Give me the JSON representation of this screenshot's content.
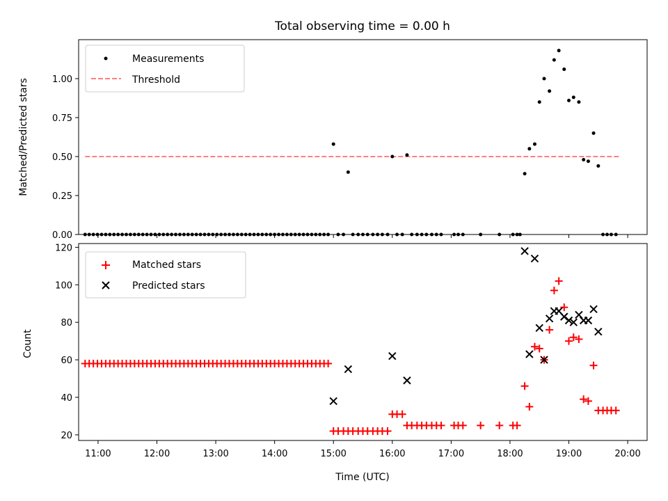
{
  "figure": {
    "title": "Total observing time = 0.00 h",
    "xlabel": "Time (UTC)",
    "x_ticks": [
      "11:00",
      "12:00",
      "13:00",
      "14:00",
      "15:00",
      "16:00",
      "17:00",
      "18:00",
      "19:00",
      "20:00"
    ]
  },
  "chart_data": [
    {
      "type": "scatter",
      "ylabel": "Matched/Predicted stars",
      "xlim": [
        10.67,
        20.33
      ],
      "ylim": [
        0,
        1.25
      ],
      "y_ticks": [
        "0.00",
        "0.25",
        "0.50",
        "0.75",
        "1.00"
      ],
      "legend": [
        "Measurements",
        "Threshold"
      ],
      "legend_position": "upper-left",
      "threshold": {
        "name": "Threshold",
        "y": 0.5,
        "x_range": [
          10.78,
          19.85
        ],
        "color": "#ff7f7f"
      },
      "measurements": {
        "name": "Measurements",
        "color": "#000000",
        "x": [
          10.78,
          10.85,
          10.92,
          10.99,
          11.06,
          11.13,
          11.2,
          11.27,
          11.34,
          11.41,
          11.48,
          11.55,
          11.62,
          11.69,
          11.76,
          11.83,
          11.9,
          11.97,
          12.04,
          12.11,
          12.18,
          12.25,
          12.32,
          12.39,
          12.46,
          12.53,
          12.6,
          12.67,
          12.74,
          12.81,
          12.88,
          12.95,
          13.02,
          13.09,
          13.16,
          13.23,
          13.3,
          13.37,
          13.44,
          13.51,
          13.58,
          13.65,
          13.72,
          13.79,
          13.86,
          13.93,
          14.0,
          14.07,
          14.14,
          14.21,
          14.28,
          14.35,
          14.42,
          14.49,
          14.56,
          14.63,
          14.7,
          14.77,
          14.84,
          14.91,
          15.0,
          15.08,
          15.17,
          15.25,
          15.33,
          15.42,
          15.5,
          15.58,
          15.67,
          15.75,
          15.83,
          15.92,
          16.0,
          16.08,
          16.17,
          16.25,
          16.33,
          16.42,
          16.5,
          16.58,
          16.67,
          16.75,
          16.83,
          17.05,
          17.12,
          17.2,
          17.5,
          17.82,
          18.05,
          18.12,
          18.17,
          18.25,
          18.33,
          18.42,
          18.5,
          18.58,
          18.67,
          18.75,
          18.83,
          18.92,
          19.0,
          19.08,
          19.17,
          19.25,
          19.33,
          19.42,
          19.5,
          19.58,
          19.65,
          19.72,
          19.8
        ],
        "y": [
          0,
          0,
          0,
          0,
          0,
          0,
          0,
          0,
          0,
          0,
          0,
          0,
          0,
          0,
          0,
          0,
          0,
          0,
          0,
          0,
          0,
          0,
          0,
          0,
          0,
          0,
          0,
          0,
          0,
          0,
          0,
          0,
          0,
          0,
          0,
          0,
          0,
          0,
          0,
          0,
          0,
          0,
          0,
          0,
          0,
          0,
          0,
          0,
          0,
          0,
          0,
          0,
          0,
          0,
          0,
          0,
          0,
          0,
          0,
          0,
          0.58,
          0,
          0,
          0.4,
          0,
          0,
          0,
          0,
          0,
          0,
          0,
          0,
          0.5,
          0,
          0,
          0.51,
          0,
          0,
          0,
          0,
          0,
          0,
          0,
          0,
          0,
          0,
          0,
          0,
          0,
          0,
          0,
          0.39,
          0.55,
          0.58,
          0.85,
          1.0,
          0.92,
          1.12,
          1.18,
          1.06,
          0.86,
          0.88,
          0.85,
          0.48,
          0.47,
          0.65,
          0.44,
          0,
          0,
          0,
          0
        ]
      }
    },
    {
      "type": "scatter",
      "ylabel": "Count",
      "xlim": [
        10.67,
        20.33
      ],
      "ylim": [
        17,
        122
      ],
      "y_ticks": [
        "20",
        "40",
        "60",
        "80",
        "100",
        "120"
      ],
      "legend": [
        "Matched stars",
        "Predicted stars"
      ],
      "legend_position": "upper-left",
      "series": [
        {
          "name": "Matched stars",
          "marker": "plus",
          "color": "#ff0000",
          "x": [
            10.78,
            10.85,
            10.92,
            10.99,
            11.06,
            11.13,
            11.2,
            11.27,
            11.34,
            11.41,
            11.48,
            11.55,
            11.62,
            11.69,
            11.76,
            11.83,
            11.9,
            11.97,
            12.04,
            12.11,
            12.18,
            12.25,
            12.32,
            12.39,
            12.46,
            12.53,
            12.6,
            12.67,
            12.74,
            12.81,
            12.88,
            12.95,
            13.02,
            13.09,
            13.16,
            13.23,
            13.3,
            13.37,
            13.44,
            13.51,
            13.58,
            13.65,
            13.72,
            13.79,
            13.86,
            13.93,
            14.0,
            14.07,
            14.14,
            14.21,
            14.28,
            14.35,
            14.42,
            14.49,
            14.56,
            14.63,
            14.7,
            14.77,
            14.84,
            14.91,
            15.0,
            15.08,
            15.17,
            15.25,
            15.33,
            15.42,
            15.5,
            15.58,
            15.67,
            15.75,
            15.83,
            15.92,
            16.0,
            16.08,
            16.17,
            16.25,
            16.33,
            16.42,
            16.5,
            16.58,
            16.67,
            16.75,
            16.83,
            17.05,
            17.12,
            17.2,
            17.5,
            17.82,
            18.05,
            18.12,
            18.25,
            18.33,
            18.42,
            18.5,
            18.58,
            18.67,
            18.75,
            18.83,
            18.92,
            19.0,
            19.08,
            19.17,
            19.25,
            19.33,
            19.42,
            19.5,
            19.58,
            19.65,
            19.72,
            19.8
          ],
          "y": [
            58,
            58,
            58,
            58,
            58,
            58,
            58,
            58,
            58,
            58,
            58,
            58,
            58,
            58,
            58,
            58,
            58,
            58,
            58,
            58,
            58,
            58,
            58,
            58,
            58,
            58,
            58,
            58,
            58,
            58,
            58,
            58,
            58,
            58,
            58,
            58,
            58,
            58,
            58,
            58,
            58,
            58,
            58,
            58,
            58,
            58,
            58,
            58,
            58,
            58,
            58,
            58,
            58,
            58,
            58,
            58,
            58,
            58,
            58,
            58,
            22,
            22,
            22,
            22,
            22,
            22,
            22,
            22,
            22,
            22,
            22,
            22,
            31,
            31,
            31,
            25,
            25,
            25,
            25,
            25,
            25,
            25,
            25,
            25,
            25,
            25,
            25,
            25,
            25,
            25,
            46,
            35,
            67,
            66,
            60,
            76,
            97,
            102,
            88,
            70,
            72,
            71,
            39,
            38,
            57,
            33,
            33,
            33,
            33,
            33
          ]
        },
        {
          "name": "Predicted stars",
          "marker": "x",
          "color": "#000000",
          "x": [
            15.0,
            15.25,
            16.0,
            16.25,
            18.25,
            18.33,
            18.42,
            18.5,
            18.58,
            18.67,
            18.75,
            18.83,
            18.92,
            19.0,
            19.08,
            19.17,
            19.25,
            19.33,
            19.42,
            19.5
          ],
          "y": [
            38,
            55,
            62,
            49,
            118,
            63,
            114,
            77,
            60,
            82,
            86,
            86,
            83,
            81,
            80,
            84,
            81,
            81,
            87,
            75
          ]
        }
      ]
    }
  ]
}
